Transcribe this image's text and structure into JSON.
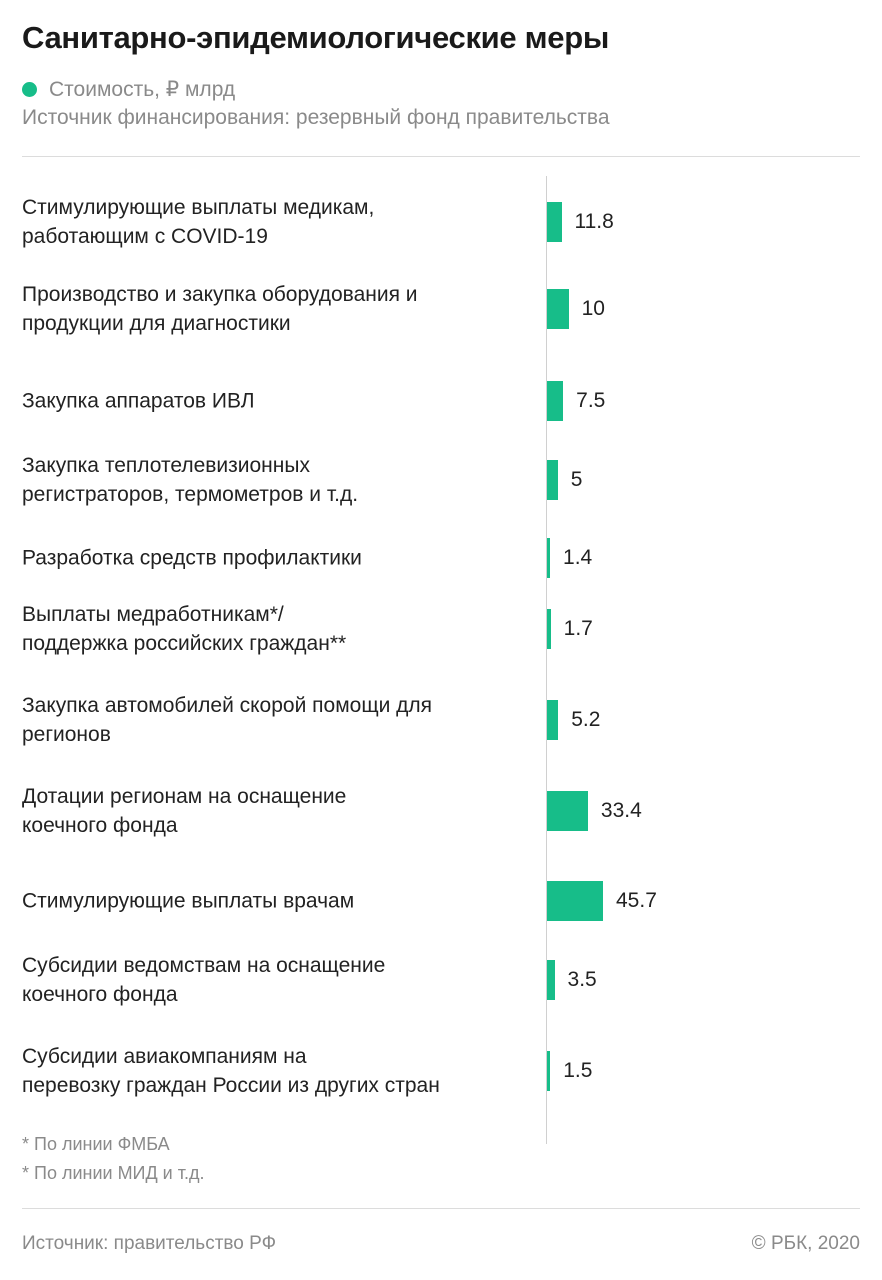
{
  "title": "Санитарно-эпидемиологические меры",
  "legend": {
    "label": "Стоимость, ₽ млрд",
    "color": "#17bd89"
  },
  "subtitle": "Источник финансирования: резервный фонд правительства",
  "chart_data": {
    "type": "bar",
    "orientation": "horizontal",
    "categories": [
      "Стимулирующие выплаты медикам, работающим с COVID-19",
      "Производство и закупка оборудования и продукции для диагностики",
      "Закупка аппаратов ИВЛ",
      "Закупка теплотелевизионных регистраторов, термометров и т.д.",
      "Разработка средств профилактики",
      "Выплаты медработникам*/ поддержка российских граждан**",
      "Закупка автомобилей скорой помощи для регионов",
      "Дотации регионам на оснащение коечного фонда",
      "Стимулирующие выплаты врачам",
      "Субсидии ведомствам на оснащение коечного фонда",
      "Субсидии авиакомпаниям на перевозку граждан России из других стран"
    ],
    "values": [
      11.8,
      10,
      7.5,
      5,
      1.4,
      1.7,
      5.2,
      33.4,
      45.7,
      3.5,
      1.5
    ],
    "value_labels": [
      "11.8",
      "10",
      "7.5",
      "5",
      "1.4",
      "1.7",
      "5.2",
      "33.4",
      "45.7",
      "3.5",
      "1.5"
    ],
    "series": [
      {
        "name": "Стоимость, ₽ млрд",
        "color": "#17bd89"
      }
    ]
  },
  "footnotes": [
    "* По линии ФМБА",
    "* По линии МИД и т.д."
  ],
  "source": "Источник: правительство РФ",
  "copyright": "© РБК, 2020"
}
